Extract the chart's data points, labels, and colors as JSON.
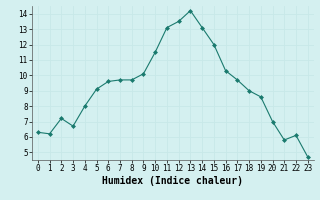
{
  "x": [
    0,
    1,
    2,
    3,
    4,
    5,
    6,
    7,
    8,
    9,
    10,
    11,
    12,
    13,
    14,
    15,
    16,
    17,
    18,
    19,
    20,
    21,
    22,
    23
  ],
  "y": [
    6.3,
    6.2,
    7.2,
    6.7,
    8.0,
    9.1,
    9.6,
    9.7,
    9.7,
    10.1,
    11.5,
    13.1,
    13.5,
    14.2,
    13.1,
    12.0,
    10.3,
    9.7,
    9.0,
    8.6,
    7.0,
    5.8,
    6.1,
    4.7
  ],
  "line_color": "#1a7a6e",
  "marker": "D",
  "marker_size": 2,
  "bg_color": "#d4f0f0",
  "grid_color": "#b0d8d8",
  "xlabel": "Humidex (Indice chaleur)",
  "xlim": [
    -0.5,
    23.5
  ],
  "ylim": [
    4.5,
    14.5
  ],
  "yticks": [
    5,
    6,
    7,
    8,
    9,
    10,
    11,
    12,
    13,
    14
  ],
  "xticks": [
    0,
    1,
    2,
    3,
    4,
    5,
    6,
    7,
    8,
    9,
    10,
    11,
    12,
    13,
    14,
    15,
    16,
    17,
    18,
    19,
    20,
    21,
    22,
    23
  ],
  "tick_fontsize": 5.5,
  "label_fontsize": 7.0
}
